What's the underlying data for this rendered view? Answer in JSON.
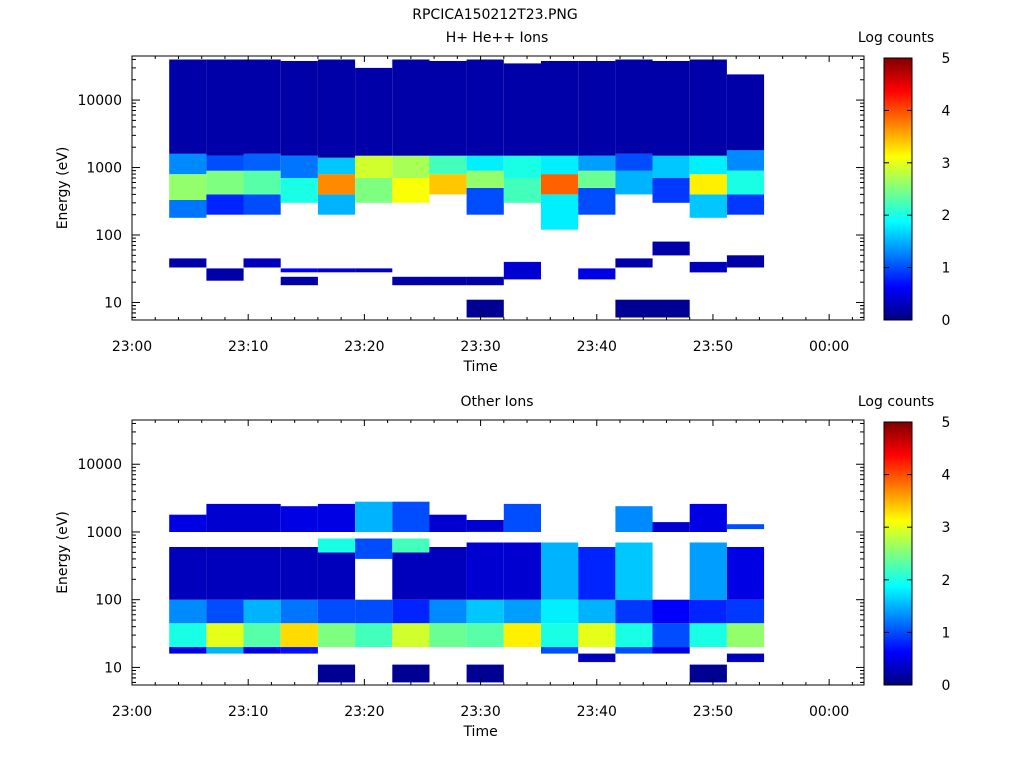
{
  "page_title": "RPCICA150212T23.PNG",
  "chart_data": [
    {
      "type": "heatmap",
      "title": "H+ He++ Ions",
      "xlabel": "Time",
      "ylabel": "Energy (eV)",
      "x_ticks": [
        "23:00",
        "23:10",
        "23:20",
        "23:30",
        "23:40",
        "23:50",
        "00:00"
      ],
      "x_range_minutes": [
        0,
        63
      ],
      "y_scale": "log",
      "y_ticks": [
        10,
        100,
        1000,
        10000
      ],
      "ylim": [
        5.5,
        45000
      ],
      "colorbar": {
        "label": "Log counts",
        "ticks": [
          0,
          1,
          2,
          3,
          4,
          5
        ],
        "range": [
          0,
          5
        ]
      },
      "columns": [
        {
          "t_start": 3.2,
          "t_end": 6.4,
          "bands": [
            [
              33,
              45,
              0.2
            ],
            [
              180,
              330,
              1.2
            ],
            [
              330,
              800,
              2.6
            ],
            [
              800,
              1600,
              1.3
            ],
            [
              1600,
              40000,
              0.2
            ]
          ]
        },
        {
          "t_start": 6.4,
          "t_end": 9.6,
          "bands": [
            [
              21,
              32,
              0.2
            ],
            [
              200,
              400,
              0.8
            ],
            [
              400,
              900,
              2.5
            ],
            [
              900,
              1500,
              1.0
            ],
            [
              1500,
              40000,
              0.2
            ]
          ]
        },
        {
          "t_start": 9.6,
          "t_end": 12.8,
          "bands": [
            [
              33,
              45,
              0.3
            ],
            [
              200,
              400,
              1.0
            ],
            [
              400,
              900,
              2.3
            ],
            [
              900,
              1600,
              1.1
            ],
            [
              1600,
              40000,
              0.2
            ]
          ]
        },
        {
          "t_start": 12.8,
          "t_end": 16.0,
          "bands": [
            [
              28,
              32,
              0.6
            ],
            [
              18,
              24,
              0.2
            ],
            [
              300,
              700,
              2.0
            ],
            [
              700,
              1500,
              1.2
            ],
            [
              1500,
              38000,
              0.2
            ]
          ]
        },
        {
          "t_start": 16.0,
          "t_end": 19.2,
          "bands": [
            [
              28,
              32,
              0.4
            ],
            [
              200,
              400,
              1.5
            ],
            [
              400,
              800,
              3.7
            ],
            [
              800,
              1400,
              1.6
            ],
            [
              1400,
              40000,
              0.2
            ]
          ]
        },
        {
          "t_start": 19.2,
          "t_end": 22.4,
          "bands": [
            [
              28,
              32,
              0.3
            ],
            [
              300,
              700,
              2.5
            ],
            [
              700,
              1500,
              2.9
            ],
            [
              1500,
              30000,
              0.2
            ]
          ]
        },
        {
          "t_start": 22.4,
          "t_end": 25.6,
          "bands": [
            [
              18,
              24,
              0.2
            ],
            [
              300,
              700,
              3.1
            ],
            [
              700,
              1500,
              2.7
            ],
            [
              1500,
              40000,
              0.2
            ]
          ]
        },
        {
          "t_start": 25.6,
          "t_end": 28.8,
          "bands": [
            [
              18,
              24,
              0.2
            ],
            [
              400,
              800,
              3.4
            ],
            [
              800,
              1500,
              2.2
            ],
            [
              1500,
              38000,
              0.2
            ]
          ]
        },
        {
          "t_start": 28.8,
          "t_end": 32.0,
          "bands": [
            [
              6,
              11,
              0.1
            ],
            [
              18,
              24,
              0.2
            ],
            [
              200,
              500,
              1.0
            ],
            [
              500,
              900,
              2.6
            ],
            [
              900,
              1500,
              1.8
            ],
            [
              1500,
              40000,
              0.2
            ]
          ]
        },
        {
          "t_start": 32.0,
          "t_end": 35.2,
          "bands": [
            [
              22,
              40,
              0.4
            ],
            [
              300,
              700,
              2.2
            ],
            [
              700,
              1500,
              2.0
            ],
            [
              1500,
              35000,
              0.2
            ]
          ]
        },
        {
          "t_start": 35.2,
          "t_end": 38.4,
          "bands": [
            [
              120,
              400,
              1.8
            ],
            [
              400,
              800,
              3.9
            ],
            [
              800,
              1500,
              1.8
            ],
            [
              1500,
              38000,
              0.2
            ]
          ]
        },
        {
          "t_start": 38.4,
          "t_end": 41.6,
          "bands": [
            [
              22,
              32,
              0.5
            ],
            [
              200,
              500,
              1.0
            ],
            [
              500,
              900,
              2.4
            ],
            [
              900,
              1500,
              1.4
            ],
            [
              1500,
              38000,
              0.2
            ]
          ]
        },
        {
          "t_start": 41.6,
          "t_end": 44.8,
          "bands": [
            [
              6,
              11,
              0.1
            ],
            [
              33,
              45,
              0.2
            ],
            [
              400,
              900,
              1.5
            ],
            [
              900,
              1600,
              1.0
            ],
            [
              1600,
              40000,
              0.2
            ]
          ]
        },
        {
          "t_start": 44.8,
          "t_end": 48.0,
          "bands": [
            [
              6,
              11,
              0.1
            ],
            [
              50,
              80,
              0.2
            ],
            [
              300,
              700,
              0.9
            ],
            [
              700,
              1500,
              1.6
            ],
            [
              1500,
              38000,
              0.2
            ]
          ]
        },
        {
          "t_start": 48.0,
          "t_end": 51.2,
          "bands": [
            [
              28,
              40,
              0.3
            ],
            [
              180,
              400,
              1.6
            ],
            [
              400,
              800,
              3.2
            ],
            [
              800,
              1500,
              1.8
            ],
            [
              1500,
              40000,
              0.2
            ]
          ]
        },
        {
          "t_start": 51.2,
          "t_end": 54.4,
          "bands": [
            [
              33,
              50,
              0.2
            ],
            [
              200,
              400,
              0.9
            ],
            [
              400,
              900,
              2.0
            ],
            [
              900,
              1800,
              1.3
            ],
            [
              1800,
              24000,
              0.2
            ]
          ]
        }
      ]
    },
    {
      "type": "heatmap",
      "title": "Other Ions",
      "xlabel": "Time",
      "ylabel": "Energy (eV)",
      "x_ticks": [
        "23:00",
        "23:10",
        "23:20",
        "23:30",
        "23:40",
        "23:50",
        "00:00"
      ],
      "x_range_minutes": [
        0,
        63
      ],
      "y_scale": "log",
      "y_ticks": [
        10,
        100,
        1000,
        10000
      ],
      "ylim": [
        5.5,
        45000
      ],
      "colorbar": {
        "label": "Log counts",
        "ticks": [
          0,
          1,
          2,
          3,
          4,
          5
        ],
        "range": [
          0,
          5
        ]
      },
      "columns": [
        {
          "t_start": 3.2,
          "t_end": 6.4,
          "bands": [
            [
              16,
              20,
              0.5
            ],
            [
              20,
              45,
              2.0
            ],
            [
              45,
              100,
              1.3
            ],
            [
              100,
              600,
              0.3
            ],
            [
              1000,
              1800,
              0.5
            ]
          ]
        },
        {
          "t_start": 6.4,
          "t_end": 9.6,
          "bands": [
            [
              16,
              20,
              1.5
            ],
            [
              20,
              45,
              3.0
            ],
            [
              45,
              100,
              1.0
            ],
            [
              100,
              600,
              0.3
            ],
            [
              1000,
              2600,
              0.4
            ]
          ]
        },
        {
          "t_start": 9.6,
          "t_end": 12.8,
          "bands": [
            [
              16,
              20,
              0.5
            ],
            [
              20,
              45,
              2.3
            ],
            [
              45,
              100,
              1.5
            ],
            [
              100,
              600,
              0.3
            ],
            [
              1000,
              2600,
              0.4
            ]
          ]
        },
        {
          "t_start": 12.8,
          "t_end": 16.0,
          "bands": [
            [
              16,
              20,
              0.7
            ],
            [
              20,
              45,
              3.3
            ],
            [
              45,
              100,
              1.2
            ],
            [
              100,
              600,
              0.3
            ],
            [
              1000,
              2400,
              0.5
            ]
          ]
        },
        {
          "t_start": 16.0,
          "t_end": 19.2,
          "bands": [
            [
              6,
              11,
              0.1
            ],
            [
              20,
              45,
              2.5
            ],
            [
              45,
              100,
              1.0
            ],
            [
              100,
              500,
              0.3
            ],
            [
              500,
              800,
              2.0
            ],
            [
              1000,
              2600,
              0.5
            ]
          ]
        },
        {
          "t_start": 19.2,
          "t_end": 22.4,
          "bands": [
            [
              20,
              45,
              2.2
            ],
            [
              45,
              100,
              1.0
            ],
            [
              400,
              800,
              1.0
            ],
            [
              1000,
              2800,
              1.5
            ]
          ]
        },
        {
          "t_start": 22.4,
          "t_end": 25.6,
          "bands": [
            [
              6,
              11,
              0.1
            ],
            [
              20,
              45,
              2.9
            ],
            [
              45,
              100,
              0.8
            ],
            [
              100,
              500,
              0.3
            ],
            [
              500,
              800,
              2.2
            ],
            [
              1000,
              2800,
              1.0
            ]
          ]
        },
        {
          "t_start": 25.6,
          "t_end": 28.8,
          "bands": [
            [
              20,
              45,
              2.4
            ],
            [
              45,
              100,
              1.3
            ],
            [
              100,
              600,
              0.3
            ],
            [
              1000,
              1800,
              0.4
            ]
          ]
        },
        {
          "t_start": 28.8,
          "t_end": 32.0,
          "bands": [
            [
              6,
              11,
              0.1
            ],
            [
              20,
              45,
              2.3
            ],
            [
              45,
              100,
              1.6
            ],
            [
              100,
              700,
              0.4
            ],
            [
              1000,
              1500,
              0.4
            ]
          ]
        },
        {
          "t_start": 32.0,
          "t_end": 35.2,
          "bands": [
            [
              20,
              45,
              3.2
            ],
            [
              45,
              100,
              1.4
            ],
            [
              100,
              700,
              0.4
            ],
            [
              1000,
              2600,
              1.0
            ]
          ]
        },
        {
          "t_start": 35.2,
          "t_end": 38.4,
          "bands": [
            [
              16,
              20,
              1.0
            ],
            [
              20,
              45,
              2.0
            ],
            [
              45,
              100,
              1.8
            ],
            [
              100,
              700,
              1.5
            ]
          ]
        },
        {
          "t_start": 38.4,
          "t_end": 41.6,
          "bands": [
            [
              12,
              16,
              0.3
            ],
            [
              20,
              45,
              3.0
            ],
            [
              45,
              100,
              1.5
            ],
            [
              100,
              600,
              0.8
            ]
          ]
        },
        {
          "t_start": 41.6,
          "t_end": 44.8,
          "bands": [
            [
              16,
              20,
              1.0
            ],
            [
              20,
              45,
              2.0
            ],
            [
              45,
              100,
              0.9
            ],
            [
              100,
              700,
              1.6
            ],
            [
              1000,
              2400,
              1.3
            ]
          ]
        },
        {
          "t_start": 44.8,
          "t_end": 48.0,
          "bands": [
            [
              16,
              20,
              0.5
            ],
            [
              20,
              45,
              1.0
            ],
            [
              45,
              100,
              0.6
            ],
            [
              1000,
              1400,
              0.4
            ]
          ]
        },
        {
          "t_start": 48.0,
          "t_end": 51.2,
          "bands": [
            [
              6,
              11,
              0.1
            ],
            [
              20,
              45,
              2.0
            ],
            [
              45,
              100,
              0.8
            ],
            [
              100,
              700,
              1.4
            ],
            [
              1000,
              2600,
              0.5
            ]
          ]
        },
        {
          "t_start": 51.2,
          "t_end": 54.4,
          "bands": [
            [
              12,
              16,
              0.3
            ],
            [
              20,
              45,
              2.6
            ],
            [
              45,
              100,
              0.9
            ],
            [
              100,
              600,
              0.5
            ],
            [
              1100,
              1300,
              1.0
            ]
          ]
        }
      ]
    }
  ]
}
